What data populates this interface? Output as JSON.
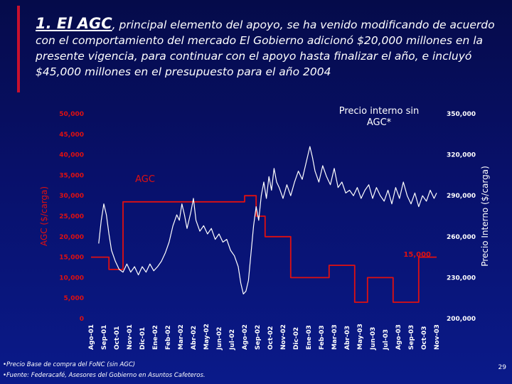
{
  "slide": {
    "title_lead": "1. El AGC",
    "title_rest": ", principal elemento del apoyo, se ha venido modificando de acuerdo con el comportamiento del mercado El Gobierno adicionó $20,000 millones en la presente vigencia, para continuar con el apoyo hasta finalizar el año, e incluyó $45,000 millones en el presupuesto para el año 2004",
    "footnote_1": "•Precio Base de compra del FoNC (sin AGC)",
    "footnote_2": "•Fuente: Federacafé, Asesores del Gobierno en Asuntos Cafeteros.",
    "page_number": "29"
  },
  "chart_data": {
    "type": "line",
    "categories": [
      "Ago-01",
      "Sep-01",
      "Oct-01",
      "Nov-01",
      "Dic-01",
      "Ene-02",
      "Feb-02",
      "Mar-02",
      "Abr-02",
      "May-02",
      "Jun-02",
      "Jul-02",
      "Ago-02",
      "Sep-02",
      "Oct-02",
      "Nov-02",
      "Dic-02",
      "Ene-03",
      "Feb-03",
      "Mar-03",
      "Abr-03",
      "May-03",
      "Jun-03",
      "Jul-03",
      "Ago-03",
      "Sep-03",
      "Oct-03",
      "Nov-03"
    ],
    "ylabel_left": "AGC ($/carga)",
    "ylabel_right": "Precio Interno ($/carga)",
    "ylim_left": [
      0,
      50000
    ],
    "ylim_right": [
      200000,
      350000
    ],
    "yticks_left": [
      "0",
      "5,000",
      "10,000",
      "15,000",
      "20,000",
      "25,000",
      "30,000",
      "35,000",
      "40,000",
      "45,000",
      "50,000"
    ],
    "yticks_right": [
      "200,000",
      "230,000",
      "260,000",
      "290,000",
      "320,000",
      "350,000"
    ],
    "series": [
      {
        "name": "AGC",
        "axis": "left",
        "color": "#e01010",
        "points": [
          [
            0,
            15000
          ],
          [
            1.4,
            15000
          ],
          [
            1.4,
            12000
          ],
          [
            2.5,
            12000
          ],
          [
            2.5,
            28500
          ],
          [
            12,
            28500
          ],
          [
            12,
            30000
          ],
          [
            12.9,
            30000
          ],
          [
            12.9,
            25000
          ],
          [
            13.6,
            25000
          ],
          [
            13.6,
            20000
          ],
          [
            15.6,
            20000
          ],
          [
            15.6,
            10000
          ],
          [
            18.6,
            10000
          ],
          [
            18.6,
            13000
          ],
          [
            20.6,
            13000
          ],
          [
            20.6,
            4000
          ],
          [
            21.6,
            4000
          ],
          [
            21.6,
            10000
          ],
          [
            23.6,
            10000
          ],
          [
            23.6,
            4000
          ],
          [
            25.6,
            4000
          ],
          [
            25.6,
            15000
          ],
          [
            27,
            15000
          ]
        ]
      },
      {
        "name": "Precio interno sin AGC*",
        "axis": "right",
        "color": "#ffffff",
        "points": [
          [
            0.6,
            255000
          ],
          [
            0.8,
            272000
          ],
          [
            1.0,
            284000
          ],
          [
            1.2,
            276000
          ],
          [
            1.4,
            262000
          ],
          [
            1.6,
            250000
          ],
          [
            1.9,
            242000
          ],
          [
            2.2,
            236000
          ],
          [
            2.5,
            234000
          ],
          [
            2.8,
            240000
          ],
          [
            3.1,
            234000
          ],
          [
            3.4,
            238000
          ],
          [
            3.7,
            232000
          ],
          [
            4.0,
            238000
          ],
          [
            4.3,
            234000
          ],
          [
            4.6,
            240000
          ],
          [
            4.9,
            235000
          ],
          [
            5.2,
            238000
          ],
          [
            5.5,
            242000
          ],
          [
            5.8,
            248000
          ],
          [
            6.1,
            256000
          ],
          [
            6.4,
            268000
          ],
          [
            6.7,
            276000
          ],
          [
            6.9,
            272000
          ],
          [
            7.1,
            284000
          ],
          [
            7.3,
            276000
          ],
          [
            7.5,
            266000
          ],
          [
            7.8,
            278000
          ],
          [
            8.0,
            288000
          ],
          [
            8.2,
            272000
          ],
          [
            8.5,
            264000
          ],
          [
            8.8,
            268000
          ],
          [
            9.1,
            262000
          ],
          [
            9.4,
            266000
          ],
          [
            9.7,
            258000
          ],
          [
            10.0,
            262000
          ],
          [
            10.3,
            256000
          ],
          [
            10.6,
            258000
          ],
          [
            10.9,
            250000
          ],
          [
            11.2,
            246000
          ],
          [
            11.5,
            238000
          ],
          [
            11.7,
            226000
          ],
          [
            11.9,
            218000
          ],
          [
            12.1,
            220000
          ],
          [
            12.3,
            228000
          ],
          [
            12.5,
            248000
          ],
          [
            12.7,
            268000
          ],
          [
            12.9,
            282000
          ],
          [
            13.1,
            272000
          ],
          [
            13.3,
            290000
          ],
          [
            13.5,
            300000
          ],
          [
            13.7,
            288000
          ],
          [
            13.9,
            304000
          ],
          [
            14.1,
            294000
          ],
          [
            14.3,
            310000
          ],
          [
            14.5,
            300000
          ],
          [
            14.7,
            296000
          ],
          [
            15.0,
            288000
          ],
          [
            15.3,
            298000
          ],
          [
            15.6,
            290000
          ],
          [
            15.9,
            300000
          ],
          [
            16.2,
            308000
          ],
          [
            16.5,
            302000
          ],
          [
            16.8,
            314000
          ],
          [
            17.1,
            326000
          ],
          [
            17.3,
            318000
          ],
          [
            17.5,
            308000
          ],
          [
            17.8,
            300000
          ],
          [
            18.1,
            312000
          ],
          [
            18.4,
            304000
          ],
          [
            18.7,
            298000
          ],
          [
            19.0,
            310000
          ],
          [
            19.3,
            296000
          ],
          [
            19.6,
            300000
          ],
          [
            19.9,
            292000
          ],
          [
            20.2,
            294000
          ],
          [
            20.5,
            290000
          ],
          [
            20.8,
            296000
          ],
          [
            21.1,
            288000
          ],
          [
            21.4,
            294000
          ],
          [
            21.7,
            298000
          ],
          [
            22.0,
            288000
          ],
          [
            22.3,
            296000
          ],
          [
            22.6,
            290000
          ],
          [
            22.9,
            286000
          ],
          [
            23.2,
            294000
          ],
          [
            23.5,
            284000
          ],
          [
            23.8,
            296000
          ],
          [
            24.1,
            288000
          ],
          [
            24.4,
            300000
          ],
          [
            24.7,
            290000
          ],
          [
            25.0,
            284000
          ],
          [
            25.3,
            292000
          ],
          [
            25.6,
            282000
          ],
          [
            25.9,
            290000
          ],
          [
            26.2,
            286000
          ],
          [
            26.5,
            294000
          ],
          [
            26.8,
            288000
          ],
          [
            27.0,
            292000
          ]
        ]
      }
    ],
    "annotations": {
      "precio_label_line1": "Precio interno sin",
      "precio_label_line2": "AGC*",
      "agc_label": "AGC",
      "agc_end_value": "15,000"
    },
    "colors": {
      "axis_tick_left": "#e01010",
      "axis_tick_right": "#ffffff",
      "agc_line": "#e01010",
      "precio_line": "#ffffff"
    }
  }
}
